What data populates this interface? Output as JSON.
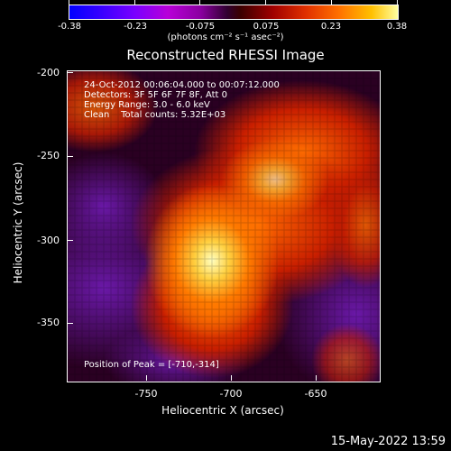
{
  "colorbar": {
    "ticks": [
      "-0.38",
      "-0.23",
      "-0.075",
      "0.075",
      "0.23",
      "0.38"
    ],
    "units": "(photons cm⁻² s⁻¹ asec⁻²)"
  },
  "title": "Reconstructed RHESSI Image",
  "annotations": {
    "line1": "24-Oct-2012 00:06:04.000 to 00:07:12.000",
    "line2": "Detectors: 3F 5F 6F 7F 8F, Att 0",
    "line3": "Energy Range: 3.0 - 6.0 keV",
    "line4": "Clean    Total counts: 5.32E+03",
    "peak": "Position of Peak = [-710,-314]"
  },
  "axes": {
    "xlabel": "Heliocentric X (arcsec)",
    "ylabel": "Heliocentric Y (arcsec)",
    "xticks": [
      "-750",
      "-700",
      "-650"
    ],
    "yticks": [
      "-200",
      "-250",
      "-300",
      "-350"
    ]
  },
  "footer": {
    "date": "15-May-2022 13:59"
  }
}
